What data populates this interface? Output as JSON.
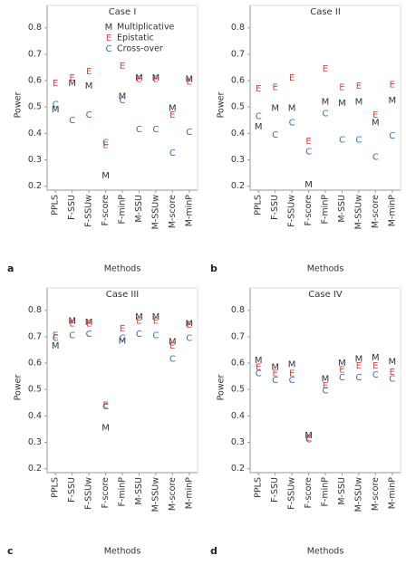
{
  "chart_data": [
    {
      "type": "scatter",
      "title": "Case I",
      "panel": "a",
      "xlabel": "Methods",
      "ylabel": "Power",
      "categories": [
        "PPLS",
        "F-SSU",
        "F-SSUw",
        "F-score",
        "F-minP",
        "M-SSU",
        "M-SSUw",
        "M-score",
        "M-minP"
      ],
      "ylim": [
        0.185,
        0.83
      ],
      "yticks": [
        0.2,
        0.3,
        0.4,
        0.5,
        0.6,
        0.7,
        0.8
      ],
      "legend": "upper right",
      "series": [
        {
          "name": "Multiplicative",
          "marker": "M",
          "color": "#333333",
          "values": [
            0.49,
            0.59,
            0.58,
            0.24,
            0.54,
            0.61,
            0.61,
            0.495,
            0.605
          ]
        },
        {
          "name": "Epistatic",
          "marker": "E",
          "color": "#d9413a",
          "values": [
            0.59,
            0.61,
            0.635,
            0.355,
            0.655,
            0.605,
            0.605,
            0.47,
            0.595
          ]
        },
        {
          "name": "Cross-over",
          "marker": "C",
          "color": "#2f6db5",
          "values": [
            0.51,
            0.45,
            0.47,
            0.365,
            0.525,
            0.415,
            0.415,
            0.325,
            0.405
          ]
        }
      ]
    },
    {
      "type": "scatter",
      "title": "Case II",
      "panel": "b",
      "xlabel": "Methods",
      "ylabel": "Power",
      "categories": [
        "PPLS",
        "F-SSU",
        "F-SSUw",
        "F-score",
        "F-minP",
        "M-SSU",
        "M-SSUw",
        "M-score",
        "M-minP"
      ],
      "ylim": [
        0.185,
        0.83
      ],
      "yticks": [
        0.2,
        0.3,
        0.4,
        0.5,
        0.6,
        0.7,
        0.8
      ],
      "series": [
        {
          "marker": "M",
          "color": "#333333",
          "values": [
            0.425,
            0.495,
            0.495,
            0.205,
            0.52,
            0.515,
            0.52,
            0.44,
            0.525
          ]
        },
        {
          "marker": "E",
          "color": "#d9413a",
          "values": [
            0.57,
            0.575,
            0.61,
            0.37,
            0.645,
            0.575,
            0.58,
            0.47,
            0.585
          ]
        },
        {
          "marker": "C",
          "color": "#2f6db5",
          "values": [
            0.465,
            0.395,
            0.44,
            0.33,
            0.475,
            0.375,
            0.375,
            0.31,
            0.39
          ]
        }
      ]
    },
    {
      "type": "scatter",
      "title": "Case III",
      "panel": "c",
      "xlabel": "Methods",
      "ylabel": "Power",
      "categories": [
        "PPLS",
        "F-SSU",
        "F-SSUw",
        "F-score",
        "F-minP",
        "M-SSU",
        "M-SSUw",
        "M-score",
        "M-minP"
      ],
      "ylim": [
        0.185,
        0.83
      ],
      "yticks": [
        0.2,
        0.3,
        0.4,
        0.5,
        0.6,
        0.7,
        0.8
      ],
      "series": [
        {
          "marker": "M",
          "color": "#333333",
          "values": [
            0.665,
            0.76,
            0.755,
            0.355,
            0.685,
            0.775,
            0.775,
            0.68,
            0.75
          ]
        },
        {
          "marker": "E",
          "color": "#d9413a",
          "values": [
            0.705,
            0.75,
            0.75,
            0.44,
            0.73,
            0.76,
            0.76,
            0.665,
            0.745
          ]
        },
        {
          "marker": "C",
          "color": "#2f6db5",
          "values": [
            0.695,
            0.705,
            0.71,
            0.435,
            0.695,
            0.71,
            0.705,
            0.615,
            0.695
          ]
        }
      ]
    },
    {
      "type": "scatter",
      "title": "Case IV",
      "panel": "d",
      "xlabel": "Methods",
      "ylabel": "Power",
      "categories": [
        "PPLS",
        "F-SSU",
        "F-SSUw",
        "F-score",
        "F-minP",
        "M-SSU",
        "M-SSUw",
        "M-score",
        "M-minP"
      ],
      "ylim": [
        0.185,
        0.83
      ],
      "yticks": [
        0.2,
        0.3,
        0.4,
        0.5,
        0.6,
        0.7,
        0.8
      ],
      "series": [
        {
          "marker": "M",
          "color": "#333333",
          "values": [
            0.61,
            0.585,
            0.595,
            0.325,
            0.54,
            0.6,
            0.615,
            0.62,
            0.605
          ]
        },
        {
          "marker": "E",
          "color": "#d9413a",
          "values": [
            0.585,
            0.56,
            0.56,
            0.315,
            0.515,
            0.575,
            0.59,
            0.59,
            0.565
          ]
        },
        {
          "marker": "C",
          "color": "#2f6db5",
          "values": [
            0.56,
            0.535,
            0.535,
            0.31,
            0.495,
            0.545,
            0.545,
            0.555,
            0.54
          ]
        }
      ]
    }
  ]
}
